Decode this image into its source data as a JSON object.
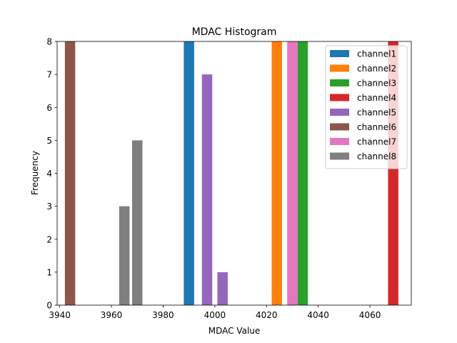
{
  "chart_data": {
    "type": "bar",
    "title": "MDAC Histogram",
    "xlabel": "MDAC Value",
    "ylabel": "Frequency",
    "xlim": [
      3939,
      4076
    ],
    "ylim": [
      0,
      8
    ],
    "xticks": [
      3940,
      3960,
      3980,
      4000,
      4020,
      4040,
      4060
    ],
    "yticks": [
      0,
      1,
      2,
      3,
      4,
      5,
      6,
      7,
      8
    ],
    "bar_width": 4,
    "legend_position": "top-right",
    "series": [
      {
        "name": "channel1",
        "color": "#1f77b4",
        "bars": [
          {
            "x": 3990,
            "value": 8
          }
        ]
      },
      {
        "name": "channel2",
        "color": "#ff7f0e",
        "bars": [
          {
            "x": 4024,
            "value": 8
          }
        ]
      },
      {
        "name": "channel3",
        "color": "#2ca02c",
        "bars": [
          {
            "x": 4034,
            "value": 8
          }
        ]
      },
      {
        "name": "channel4",
        "color": "#d62728",
        "bars": [
          {
            "x": 4069,
            "value": 8
          }
        ]
      },
      {
        "name": "channel5",
        "color": "#9467bd",
        "bars": [
          {
            "x": 3997,
            "value": 7
          },
          {
            "x": 4003,
            "value": 1
          }
        ]
      },
      {
        "name": "channel6",
        "color": "#8c564b",
        "bars": [
          {
            "x": 3944,
            "value": 8
          }
        ]
      },
      {
        "name": "channel7",
        "color": "#e377c2",
        "bars": [
          {
            "x": 4030,
            "value": 8
          }
        ]
      },
      {
        "name": "channel8",
        "color": "#7f7f7f",
        "bars": [
          {
            "x": 3965,
            "value": 3
          },
          {
            "x": 3970,
            "value": 5
          }
        ]
      }
    ]
  }
}
